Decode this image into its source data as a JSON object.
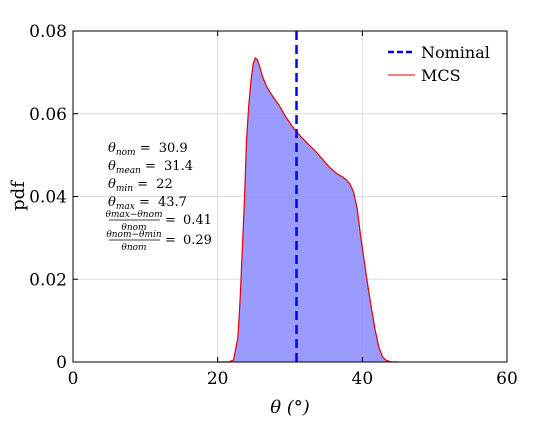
{
  "chart_data": {
    "type": "area",
    "xlabel": "θ (°)",
    "ylabel": "pdf",
    "xlim": [
      0,
      60
    ],
    "ylim": [
      0,
      0.08
    ],
    "xticks": [
      "0",
      "20",
      "40",
      "60"
    ],
    "yticks": [
      "0",
      "0.02",
      "0.04",
      "0.06",
      "0.08"
    ],
    "grid": true,
    "legend_position": "top-right",
    "legend": [
      "Nominal",
      "MCS"
    ],
    "colors": {
      "histogram": "#8f8fff",
      "mcs": "#e00000",
      "nominal": "#0000ff"
    },
    "nominal_x": 30.9,
    "series": [
      {
        "name": "MCS",
        "x": [
          20,
          21.5,
          22.2,
          22.8,
          23.1,
          23.4,
          23.7,
          24.0,
          24.3,
          24.6,
          24.9,
          25.2,
          25.5,
          25.8,
          26.2,
          26.8,
          27.5,
          28.5,
          29.5,
          30.5,
          31.5,
          32.5,
          33.5,
          34.5,
          35.5,
          36.5,
          37.2,
          37.8,
          38.3,
          38.8,
          39.3,
          39.8,
          40.3,
          40.8,
          41.3,
          41.8,
          42.3,
          42.8,
          43.3,
          43.8,
          44.5,
          45
        ],
        "y": [
          0,
          0,
          0.0005,
          0.006,
          0.015,
          0.027,
          0.039,
          0.054,
          0.062,
          0.068,
          0.072,
          0.0735,
          0.073,
          0.0715,
          0.069,
          0.0665,
          0.0645,
          0.062,
          0.059,
          0.0565,
          0.0545,
          0.0527,
          0.051,
          0.049,
          0.047,
          0.0455,
          0.0448,
          0.044,
          0.043,
          0.041,
          0.037,
          0.03,
          0.024,
          0.018,
          0.0125,
          0.0075,
          0.0035,
          0.0012,
          0.0004,
          0.0001,
          0,
          0
        ]
      }
    ]
  },
  "annotations": {
    "theta_nom": {
      "sym": "θ",
      "sub": "nom",
      "value": "30.9"
    },
    "theta_mean": {
      "sym": "θ",
      "sub": "mean",
      "value": "31.4"
    },
    "theta_min": {
      "sym": "θ",
      "sub": "min",
      "value": "22"
    },
    "theta_max": {
      "sym": "θ",
      "sub": "max",
      "value": "43.7"
    },
    "ratio_max": {
      "num": "θmax−θnom",
      "den": "θnom",
      "value": "0.41"
    },
    "ratio_min": {
      "num": "θnom−θmin",
      "den": "θnom",
      "value": "0.29"
    }
  }
}
